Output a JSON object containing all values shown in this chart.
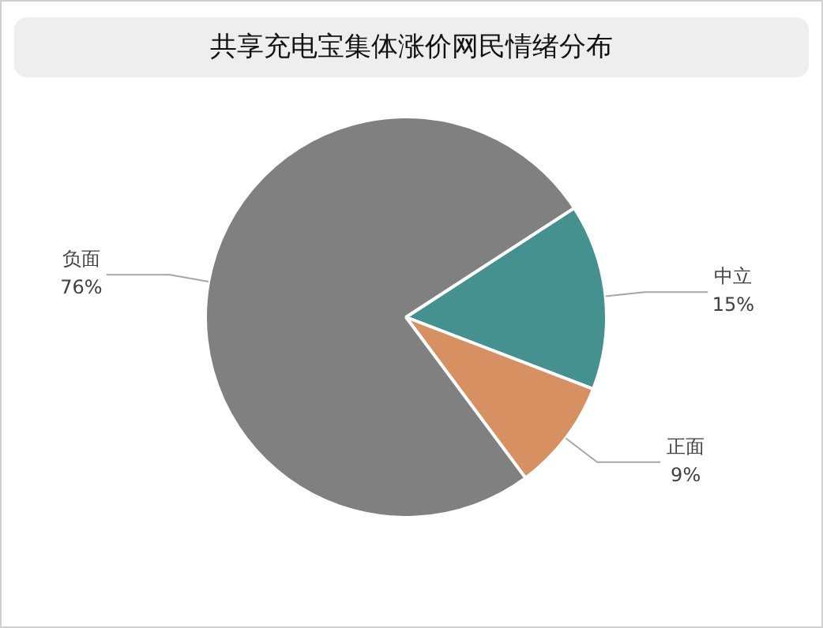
{
  "chart_data": {
    "type": "pie",
    "title": "共享充电宝集体涨价网民情绪分布",
    "categories": [
      "中立",
      "正面",
      "负面"
    ],
    "values": [
      15,
      9,
      76
    ],
    "colors": [
      "#44918f",
      "#d79061",
      "#808080"
    ],
    "value_labels": [
      "15%",
      "9%",
      "76%"
    ],
    "legend": false
  }
}
